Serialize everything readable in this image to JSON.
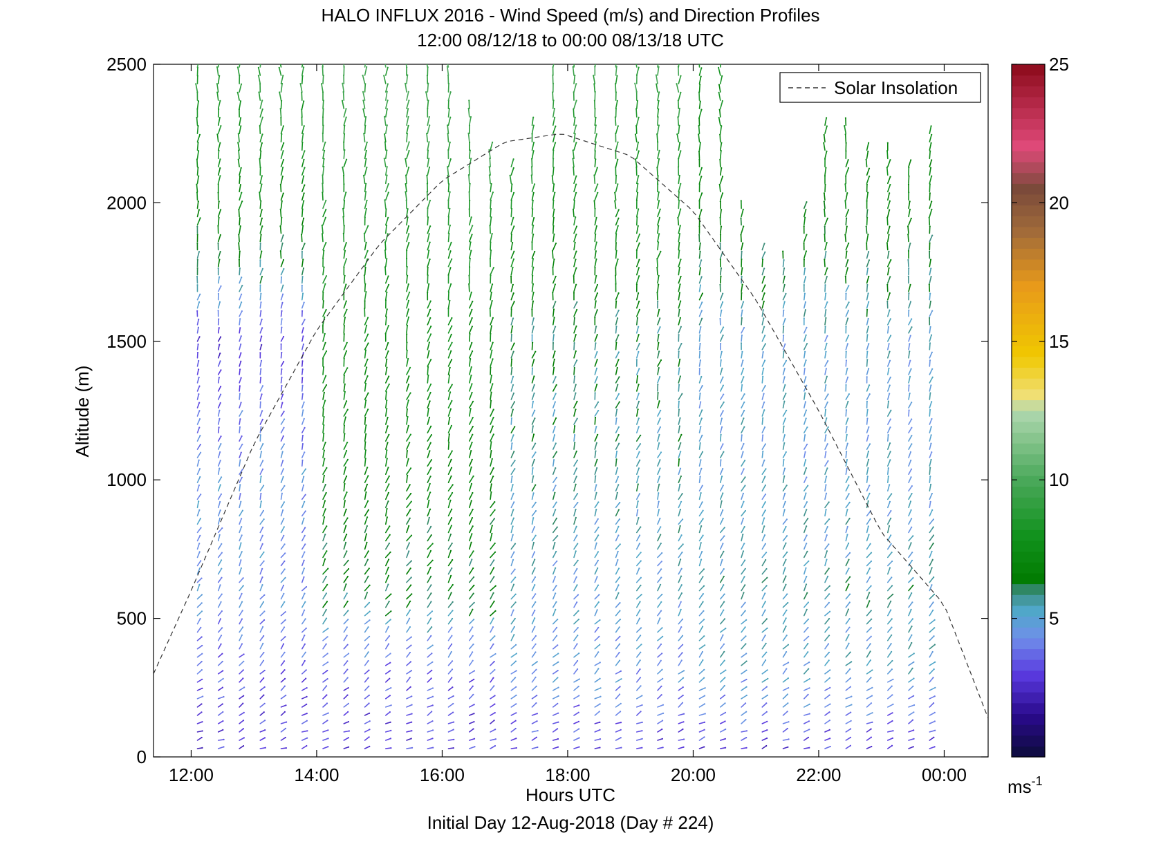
{
  "chart_data": {
    "type": "wind-barb-profile",
    "title": "HALO INFLUX 2016 - Wind Speed (m/s) and Direction Profiles",
    "subtitle": "12:00 08/12/18 to 00:00 08/13/18  UTC",
    "xlabel": "Hours UTC",
    "footer": "Initial Day 12-Aug-2018 (Day # 224)",
    "ylabel": "Altitude (m)",
    "x_range_hours": [
      11.4,
      24.7
    ],
    "x_ticks": [
      {
        "hour": 12,
        "label": "12:00"
      },
      {
        "hour": 14,
        "label": "14:00"
      },
      {
        "hour": 16,
        "label": "16:00"
      },
      {
        "hour": 18,
        "label": "18:00"
      },
      {
        "hour": 20,
        "label": "20:00"
      },
      {
        "hour": 22,
        "label": "22:00"
      },
      {
        "hour": 24,
        "label": "00:00"
      }
    ],
    "y_range": [
      0,
      2500
    ],
    "y_ticks": [
      {
        "value": 0,
        "label": "0"
      },
      {
        "value": 500,
        "label": "500"
      },
      {
        "value": 1000,
        "label": "1000"
      },
      {
        "value": 1500,
        "label": "1500"
      },
      {
        "value": 2000,
        "label": "2000"
      },
      {
        "value": 2500,
        "label": "2500"
      }
    ],
    "legend": {
      "entry": "Solar Insolation",
      "style": "dashed",
      "placement": "top-right"
    },
    "solar_insolation_curve": {
      "hours": [
        11.4,
        12,
        13,
        14,
        15,
        16,
        17,
        17.9,
        19,
        20,
        21,
        22,
        23,
        24,
        24.7
      ],
      "altitude": [
        300,
        600,
        1130,
        1540,
        1850,
        2080,
        2220,
        2250,
        2170,
        1970,
        1650,
        1250,
        810,
        550,
        140
      ]
    },
    "colorbar": {
      "range": [
        0,
        25
      ],
      "ticks": [
        {
          "value": 5,
          "label": "5"
        },
        {
          "value": 10,
          "label": "10"
        },
        {
          "value": 15,
          "label": "15"
        },
        {
          "value": 20,
          "label": "20"
        },
        {
          "value": 25,
          "label": "25"
        }
      ],
      "unit": "ms",
      "unit_exponent": "-1",
      "stops": [
        {
          "v": 0,
          "c": "#0c0c3a"
        },
        {
          "v": 1.5,
          "c": "#2a0a8c"
        },
        {
          "v": 3,
          "c": "#5a3ae0"
        },
        {
          "v": 4.3,
          "c": "#6f8fea"
        },
        {
          "v": 5.3,
          "c": "#4fa8c8"
        },
        {
          "v": 6,
          "c": "#3a8a7a"
        },
        {
          "v": 6.3,
          "c": "#007a00"
        },
        {
          "v": 8,
          "c": "#12921e"
        },
        {
          "v": 10,
          "c": "#4aa85a"
        },
        {
          "v": 12.5,
          "c": "#b0d8b0"
        },
        {
          "v": 13,
          "c": "#f0e07a"
        },
        {
          "v": 14.5,
          "c": "#f0c800"
        },
        {
          "v": 17,
          "c": "#e89a1a"
        },
        {
          "v": 19,
          "c": "#a06a3a"
        },
        {
          "v": 20.5,
          "c": "#7a4a3a"
        },
        {
          "v": 22,
          "c": "#e04a7a"
        },
        {
          "v": 25,
          "c": "#8c0a1a"
        }
      ]
    },
    "profile_times_hours": [
      12.1,
      12.433,
      12.767,
      13.1,
      13.433,
      13.767,
      14.1,
      14.433,
      14.767,
      15.1,
      15.433,
      15.767,
      16.1,
      16.433,
      16.767,
      17.1,
      17.433,
      17.767,
      18.1,
      18.433,
      18.767,
      19.1,
      19.433,
      19.767,
      20.1,
      20.433,
      20.767,
      21.1,
      21.433,
      21.767,
      22.1,
      22.433,
      22.767,
      23.1,
      23.433,
      23.767
    ],
    "profile_top_altitude_m": [
      2500,
      2500,
      2500,
      2500,
      2500,
      2500,
      2500,
      2500,
      2500,
      2500,
      2500,
      2500,
      2500,
      2350,
      2200,
      2150,
      2300,
      2500,
      2500,
      2500,
      2500,
      2500,
      2500,
      2500,
      2500,
      2500,
      2000,
      1850,
      1800,
      2000,
      2300,
      2300,
      2200,
      2200,
      2150,
      2250
    ],
    "altitude_step_m": 30,
    "speed_profile_by_band": {
      "altitudes_m": [
        30,
        300,
        600,
        1000,
        1500,
        1800,
        2200,
        2500
      ],
      "early_12_14": [
        3.0,
        3.5,
        4.5,
        4.5,
        3.0,
        6.5,
        8.0,
        9.0
      ],
      "mid_14_17": [
        3.0,
        3.5,
        6.5,
        7.0,
        7.5,
        8.0,
        9.0,
        9.5
      ],
      "midday_17_20": [
        3.0,
        4.5,
        5.0,
        5.5,
        6.0,
        7.5,
        8.5,
        9.5
      ],
      "late_20_24": [
        3.0,
        5.0,
        5.5,
        5.0,
        5.0,
        6.5,
        7.5,
        8.0
      ]
    },
    "direction_deg_by_band": {
      "altitudes_m": [
        30,
        400,
        1000,
        1800,
        2500
      ],
      "values": [
        110,
        140,
        160,
        170,
        180
      ]
    }
  }
}
